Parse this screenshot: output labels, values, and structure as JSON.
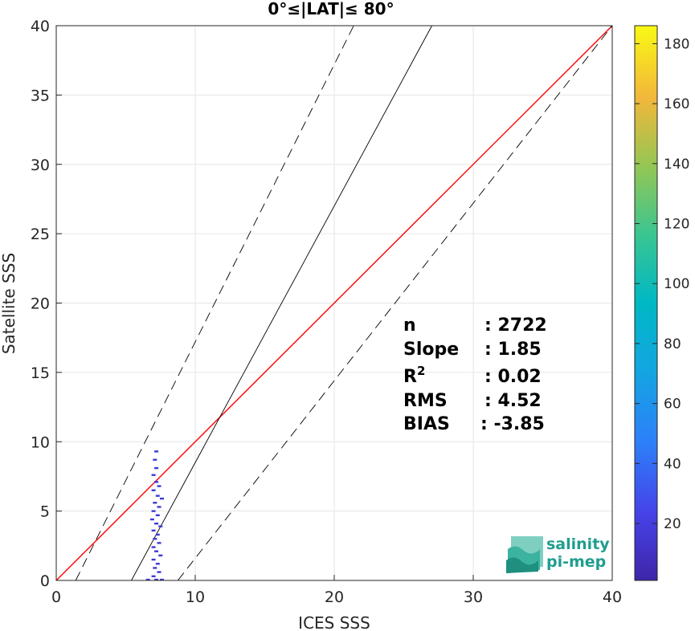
{
  "chart_data": {
    "type": "scatter",
    "title": "0°≤|LAT|≤ 80°",
    "xlabel": "ICES SSS",
    "ylabel": "Satellite SSS",
    "xlim": [
      0,
      40
    ],
    "ylim": [
      0,
      40
    ],
    "xticks": [
      0,
      10,
      20,
      30,
      40
    ],
    "yticks": [
      0,
      5,
      10,
      15,
      20,
      25,
      30,
      35,
      40
    ],
    "grid": true,
    "colorbar": {
      "min": 1,
      "max": 186,
      "ticks": [
        20,
        40,
        60,
        80,
        100,
        120,
        140,
        160,
        180
      ],
      "colormap": "parula"
    },
    "reference_lines": [
      {
        "type": "identity",
        "slope": 1,
        "intercept": 0,
        "color": "#ff0000",
        "style": "solid"
      },
      {
        "type": "regression",
        "slope": 1.85,
        "intercept": -10.0,
        "color": "#000000",
        "style": "solid"
      },
      {
        "type": "bound-upper",
        "slope": 2.0,
        "intercept": -2.8,
        "color": "#000000",
        "style": "dashed"
      },
      {
        "type": "bound-lower",
        "slope": 1.28,
        "intercept": -11.2,
        "color": "#000000",
        "style": "dashed"
      }
    ],
    "density_points": [
      {
        "x": 7.2,
        "y": 9.3
      },
      {
        "x": 7.1,
        "y": 8.7
      },
      {
        "x": 7.2,
        "y": 8.1
      },
      {
        "x": 7.0,
        "y": 7.6
      },
      {
        "x": 7.2,
        "y": 7.1
      },
      {
        "x": 7.4,
        "y": 6.8
      },
      {
        "x": 7.0,
        "y": 6.5
      },
      {
        "x": 7.3,
        "y": 6.1
      },
      {
        "x": 7.6,
        "y": 5.9
      },
      {
        "x": 7.1,
        "y": 5.6
      },
      {
        "x": 7.4,
        "y": 5.3
      },
      {
        "x": 7.0,
        "y": 5.0
      },
      {
        "x": 7.3,
        "y": 4.7
      },
      {
        "x": 6.9,
        "y": 4.4
      },
      {
        "x": 7.2,
        "y": 4.1
      },
      {
        "x": 7.5,
        "y": 3.9
      },
      {
        "x": 7.0,
        "y": 3.6
      },
      {
        "x": 7.3,
        "y": 3.3
      },
      {
        "x": 7.1,
        "y": 3.0
      },
      {
        "x": 7.4,
        "y": 2.7
      },
      {
        "x": 7.0,
        "y": 2.4
      },
      {
        "x": 7.2,
        "y": 2.1
      },
      {
        "x": 7.5,
        "y": 1.8
      },
      {
        "x": 7.0,
        "y": 1.5
      },
      {
        "x": 7.3,
        "y": 1.2
      },
      {
        "x": 7.1,
        "y": 0.9
      },
      {
        "x": 7.4,
        "y": 0.6
      },
      {
        "x": 7.0,
        "y": 0.3
      },
      {
        "x": 6.6,
        "y": 0.05
      },
      {
        "x": 7.2,
        "y": 0.05
      },
      {
        "x": 7.6,
        "y": 0.05
      }
    ],
    "stats": [
      {
        "label": "n",
        "value": ": 2722"
      },
      {
        "label": "Slope",
        "value": ": 1.85"
      },
      {
        "label": "R",
        "sup": "2",
        "value": ": 0.02"
      },
      {
        "label": "RMS",
        "value": ": 4.52"
      },
      {
        "label": "BIAS",
        "value": ": -3.85"
      }
    ]
  },
  "logo": {
    "line1": "salinity",
    "line2": "pi-mep"
  },
  "colors": {
    "identity": "#ff0000",
    "regression": "#000000",
    "points": "#3a3ad6"
  }
}
